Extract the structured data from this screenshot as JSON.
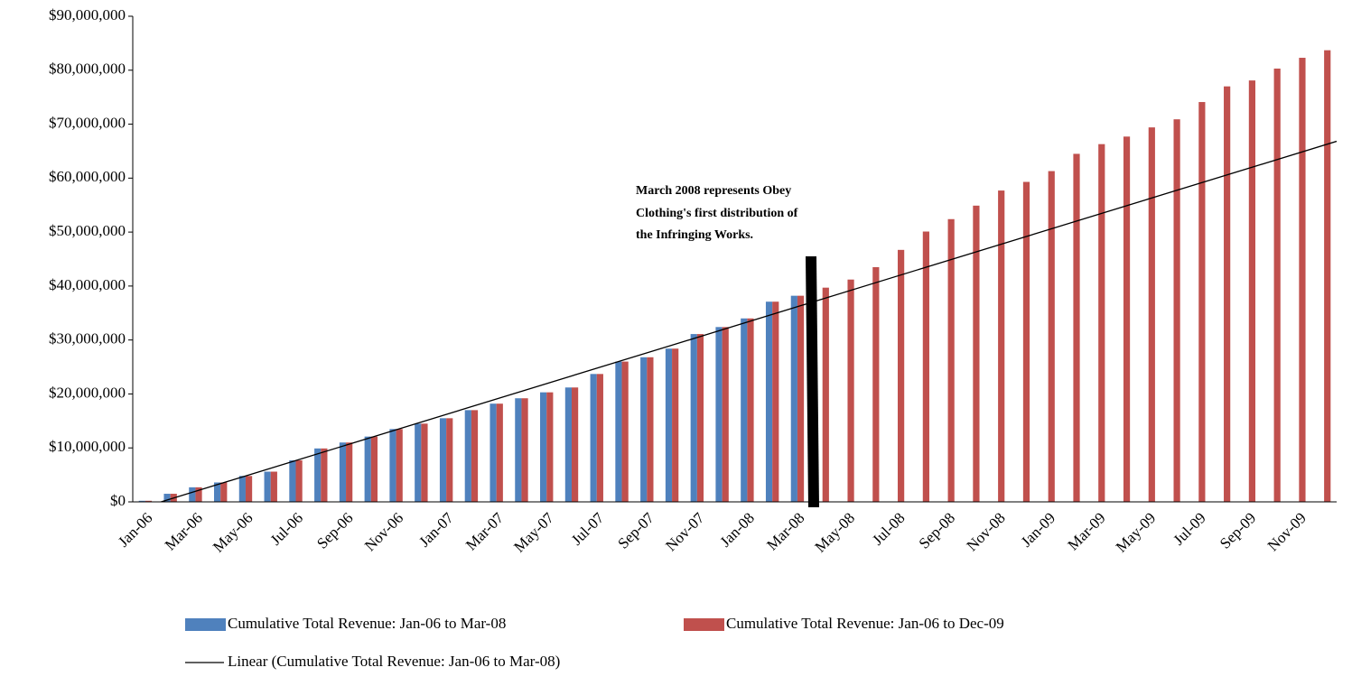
{
  "chart_data": {
    "type": "bar",
    "categories": [
      "Jan-06",
      null,
      "Mar-06",
      null,
      "May-06",
      null,
      "Jul-06",
      null,
      "Sep-06",
      null,
      "Nov-06",
      null,
      "Jan-07",
      null,
      "Mar-07",
      null,
      "May-07",
      null,
      "Jul-07",
      null,
      "Sep-07",
      null,
      "Nov-07",
      null,
      "Jan-08",
      null,
      "Mar-08",
      null,
      "May-08",
      null,
      "Jul-08",
      null,
      "Sep-08",
      null,
      "Nov-08",
      null,
      "Jan-09",
      null,
      "Mar-09",
      null,
      "May-09",
      null,
      "Jul-09",
      null,
      "Sep-09",
      null,
      "Nov-09",
      null
    ],
    "series": [
      {
        "name": "Cumulative Total Revenue: Jan-06 to Mar-08",
        "color": "#4f81bd",
        "values": [
          200000,
          1500000,
          2700000,
          3600000,
          4800000,
          5600000,
          7700000,
          9900000,
          11000000,
          12100000,
          13500000,
          14500000,
          15500000,
          17000000,
          18200000,
          19200000,
          20300000,
          21200000,
          23700000,
          26000000,
          26800000,
          28400000,
          31100000,
          32400000,
          34000000,
          37100000,
          38200000,
          null,
          null,
          null,
          null,
          null,
          null,
          null,
          null,
          null,
          null,
          null,
          null,
          null,
          null,
          null,
          null,
          null,
          null,
          null,
          null,
          null
        ]
      },
      {
        "name": "Cumulative Total Revenue: Jan-06 to Dec-09",
        "color": "#c0504d",
        "values": [
          200000,
          1500000,
          2700000,
          3600000,
          4800000,
          5600000,
          7700000,
          9900000,
          11000000,
          12100000,
          13500000,
          14500000,
          15500000,
          17000000,
          18200000,
          19200000,
          20300000,
          21200000,
          23700000,
          26000000,
          26800000,
          28400000,
          31100000,
          32400000,
          34000000,
          37100000,
          38200000,
          39700000,
          41200000,
          43500000,
          46700000,
          50100000,
          52400000,
          54900000,
          57700000,
          59300000,
          61300000,
          64500000,
          66300000,
          67700000,
          69400000,
          70900000,
          74100000,
          77000000,
          78100000,
          80300000,
          82300000,
          83700000
        ]
      }
    ],
    "trendline": {
      "name": "Linear (Cumulative Total Revenue: Jan-06 to Mar-08)",
      "color": "#000000"
    },
    "annotation": [
      "March 2008 represents Obey",
      "Clothing's first distribution of",
      "the Infringing Works."
    ],
    "ylim": [
      0,
      90000000
    ],
    "yticks": [
      {
        "value": 0,
        "label": "$0"
      },
      {
        "value": 10000000,
        "label": "$10,000,000"
      },
      {
        "value": 20000000,
        "label": "$20,000,000"
      },
      {
        "value": 30000000,
        "label": "$30,000,000"
      },
      {
        "value": 40000000,
        "label": "$40,000,000"
      },
      {
        "value": 50000000,
        "label": "$50,000,000"
      },
      {
        "value": 60000000,
        "label": "$60,000,000"
      },
      {
        "value": 70000000,
        "label": "$70,000,000"
      },
      {
        "value": 80000000,
        "label": "$80,000,000"
      },
      {
        "value": 90000000,
        "label": "$90,000,000"
      }
    ],
    "grid": false
  }
}
